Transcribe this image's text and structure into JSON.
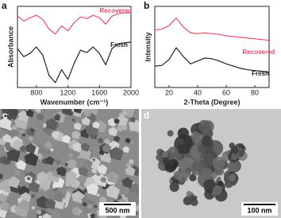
{
  "chart_data": [
    {
      "type": "line",
      "panel_label": "a",
      "xlabel": "Wavenumber (cm⁻¹)",
      "ylabel": "Absorbance",
      "x": [
        560,
        640,
        720,
        800,
        880,
        960,
        1040,
        1120,
        1200,
        1280,
        1360,
        1440,
        1520,
        1600,
        1680,
        1760,
        1840,
        1920,
        2000
      ],
      "series": [
        {
          "name": "Recovered",
          "color": "#e0506a",
          "values": [
            8.8,
            8.2,
            8.6,
            8.9,
            8.4,
            7.2,
            6.6,
            7.6,
            7.0,
            8.0,
            8.7,
            8.5,
            8.9,
            8.6,
            7.8,
            8.8,
            9.1,
            9.2,
            9.2
          ]
        },
        {
          "name": "Fresh",
          "color": "#222222",
          "values": [
            4.8,
            3.8,
            4.2,
            5.0,
            4.0,
            1.5,
            0.6,
            2.2,
            1.0,
            3.0,
            4.6,
            4.3,
            5.0,
            4.2,
            2.8,
            4.8,
            5.4,
            5.5,
            5.6
          ]
        }
      ],
      "xlim": [
        560,
        2000
      ],
      "xticks": [
        800,
        1200,
        1600,
        2000
      ],
      "ylim": [
        0,
        10
      ]
    },
    {
      "type": "line",
      "panel_label": "b",
      "xlabel": "2-Theta (Degree)",
      "ylabel": "Intensity",
      "x": [
        10,
        15,
        20,
        25,
        30,
        35,
        40,
        45,
        50,
        55,
        60,
        65,
        70,
        75,
        80,
        85,
        90
      ],
      "series": [
        {
          "name": "Recovered",
          "color": "#e0506a",
          "values": [
            7.8,
            7.9,
            8.4,
            9.4,
            8.2,
            7.4,
            7.3,
            7.4,
            7.3,
            7.2,
            7.0,
            6.9,
            6.8,
            6.7,
            6.6,
            6.5,
            6.4
          ]
        },
        {
          "name": "Fresh",
          "color": "#222222",
          "values": [
            2.9,
            3.0,
            3.8,
            5.4,
            4.2,
            3.2,
            3.6,
            4.0,
            3.9,
            3.6,
            3.2,
            2.9,
            2.6,
            2.4,
            2.3,
            2.2,
            2.1
          ]
        }
      ],
      "xlim": [
        10,
        90
      ],
      "xticks": [
        20,
        40,
        60,
        80
      ],
      "ylim": [
        0,
        11
      ]
    }
  ],
  "images": [
    {
      "panel_label": "c",
      "scale_bar": "500 nm"
    },
    {
      "panel_label": "d",
      "scale_bar": "100 nm"
    }
  ]
}
